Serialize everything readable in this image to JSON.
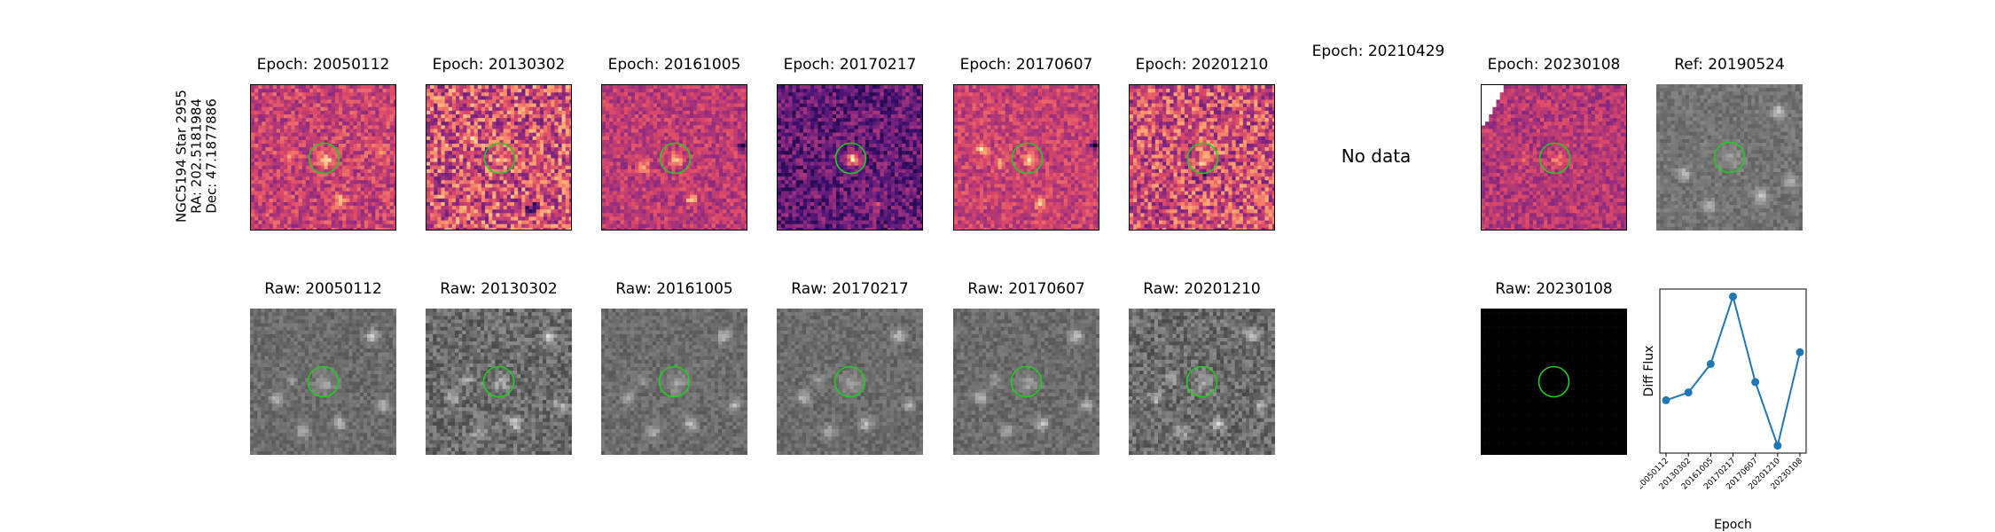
{
  "star_label": [
    "NGC5194 Star 2955",
    "RA: 202.5181984",
    "Dec: 47.1877886"
  ],
  "diff_panels": [
    {
      "title": "Epoch: 20050112",
      "has_data": true,
      "colormap": "magma"
    },
    {
      "title": "Epoch: 20130302",
      "has_data": true,
      "colormap": "magma"
    },
    {
      "title": "Epoch: 20161005",
      "has_data": true,
      "colormap": "magma"
    },
    {
      "title": "Epoch: 20170217",
      "has_data": true,
      "colormap": "magma"
    },
    {
      "title": "Epoch: 20170607",
      "has_data": true,
      "colormap": "magma"
    },
    {
      "title": "Epoch: 20201210",
      "has_data": true,
      "colormap": "magma"
    },
    {
      "title": "Epoch: 20210429",
      "has_data": false,
      "no_data_text": "No data"
    },
    {
      "title": "Epoch: 20230108",
      "has_data": true,
      "colormap": "magma"
    }
  ],
  "ref_panel": {
    "title": "Ref: 20190524",
    "colormap": "gray"
  },
  "raw_panels": [
    {
      "title": "Raw: 20050112"
    },
    {
      "title": "Raw: 20130302"
    },
    {
      "title": "Raw: 20161005"
    },
    {
      "title": "Raw: 20170217"
    },
    {
      "title": "Raw: 20170607"
    },
    {
      "title": "Raw: 20201210"
    },
    {
      "title": "Raw: 20230108"
    }
  ],
  "aperture_color": "#22cc22",
  "line_color": "#1f77b4",
  "chart_data": {
    "type": "line",
    "x": [
      "20050112",
      "20130302",
      "20161005",
      "20170217",
      "20170607",
      "20201210",
      "20230108"
    ],
    "y": [
      0.2,
      0.26,
      0.48,
      1.0,
      0.34,
      -0.15,
      0.57
    ],
    "xlabel": "Epoch",
    "ylabel": "Diff Flux",
    "grid": false,
    "marker": "circle"
  }
}
